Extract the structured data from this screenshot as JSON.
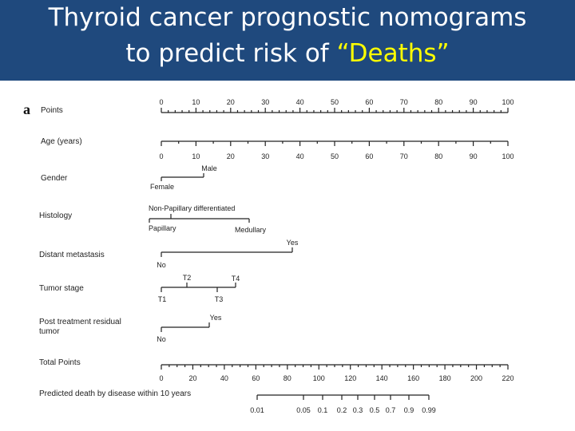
{
  "slide": {
    "title_line_1": "Thyroid cancer prognostic nomograms",
    "title_line_2_prefix": "to predict risk of ",
    "title_line_2_highlight": "“Deaths”",
    "colors": {
      "title_background": "#1f497d",
      "title_text": "#ffffff",
      "title_highlight": "#ffff00"
    }
  },
  "nomogram": {
    "panel_label": "a",
    "rows": {
      "points": {
        "label": "Points",
        "ticks": [
          "0",
          "10",
          "20",
          "30",
          "40",
          "50",
          "60",
          "70",
          "80",
          "90",
          "100"
        ]
      },
      "age": {
        "label": "Age (years)",
        "ticks": [
          "0",
          "10",
          "20",
          "30",
          "40",
          "50",
          "60",
          "70",
          "80",
          "90",
          "100"
        ]
      },
      "gender": {
        "label": "Gender",
        "categories": [
          "Male",
          "Female"
        ]
      },
      "histology": {
        "label": "Histology",
        "categories": [
          "Non-Papillary differentiated",
          "Papillary",
          "Medullary"
        ]
      },
      "distant_metastasis": {
        "label": "Distant metastasis",
        "categories": [
          "Yes",
          "No"
        ]
      },
      "tumor_stage": {
        "label": "Tumor stage",
        "categories": [
          "T2",
          "T4",
          "T1",
          "T3"
        ]
      },
      "post_treatment_residual_tumor": {
        "label_line_1": "Post treatment residual",
        "label_line_2": "tumor",
        "categories": [
          "Yes",
          "No"
        ]
      },
      "total_points": {
        "label": "Total Points",
        "ticks": [
          "0",
          "20",
          "40",
          "60",
          "80",
          "100",
          "120",
          "140",
          "160",
          "180",
          "200",
          "220"
        ]
      },
      "predicted_death": {
        "label": "Predicted death by disease within 10 years",
        "ticks": [
          "0.01",
          "0.05",
          "0.1",
          "0.2",
          "0.3",
          "0.5",
          "0.7",
          "0.9",
          "0.99"
        ]
      }
    }
  }
}
